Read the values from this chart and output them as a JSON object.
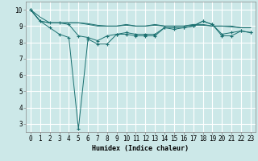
{
  "xlabel": "Humidex (Indice chaleur)",
  "bg_color": "#cce8e8",
  "grid_color": "#ffffff",
  "line_color": "#1a7070",
  "xlim": [
    -0.5,
    23.5
  ],
  "ylim": [
    2.5,
    10.5
  ],
  "yticks": [
    3,
    4,
    5,
    6,
    7,
    8,
    9,
    10
  ],
  "xticks": [
    0,
    1,
    2,
    3,
    4,
    5,
    6,
    7,
    8,
    9,
    10,
    11,
    12,
    13,
    14,
    15,
    16,
    17,
    18,
    19,
    20,
    21,
    22,
    23
  ],
  "series": [
    [
      10.0,
      9.55,
      9.2,
      9.2,
      9.2,
      9.2,
      9.15,
      9.05,
      9.0,
      9.0,
      9.05,
      9.0,
      9.0,
      9.05,
      9.0,
      9.0,
      9.0,
      9.05,
      9.05,
      9.0,
      9.0,
      8.95,
      8.9,
      8.9
    ],
    [
      10.0,
      9.3,
      8.9,
      8.5,
      8.3,
      2.7,
      8.2,
      7.9,
      7.9,
      8.5,
      8.5,
      8.4,
      8.4,
      8.4,
      8.9,
      8.8,
      8.9,
      9.0,
      9.3,
      9.1,
      8.4,
      8.4,
      8.7,
      8.6
    ],
    [
      10.0,
      9.3,
      9.2,
      9.2,
      9.2,
      9.2,
      9.1,
      9.0,
      9.0,
      9.0,
      9.1,
      9.0,
      9.0,
      9.1,
      9.0,
      9.0,
      9.0,
      9.1,
      9.1,
      9.0,
      9.0,
      9.0,
      8.9,
      8.9
    ],
    [
      10.0,
      9.3,
      9.2,
      9.2,
      9.1,
      8.4,
      8.3,
      8.1,
      8.4,
      8.5,
      8.6,
      8.5,
      8.5,
      8.5,
      8.9,
      8.9,
      8.9,
      9.0,
      9.3,
      9.1,
      8.5,
      8.6,
      8.7,
      8.6
    ]
  ],
  "marker_series": [
    1,
    3
  ],
  "xlabel_fontsize": 6.0,
  "tick_fontsize": 5.5
}
